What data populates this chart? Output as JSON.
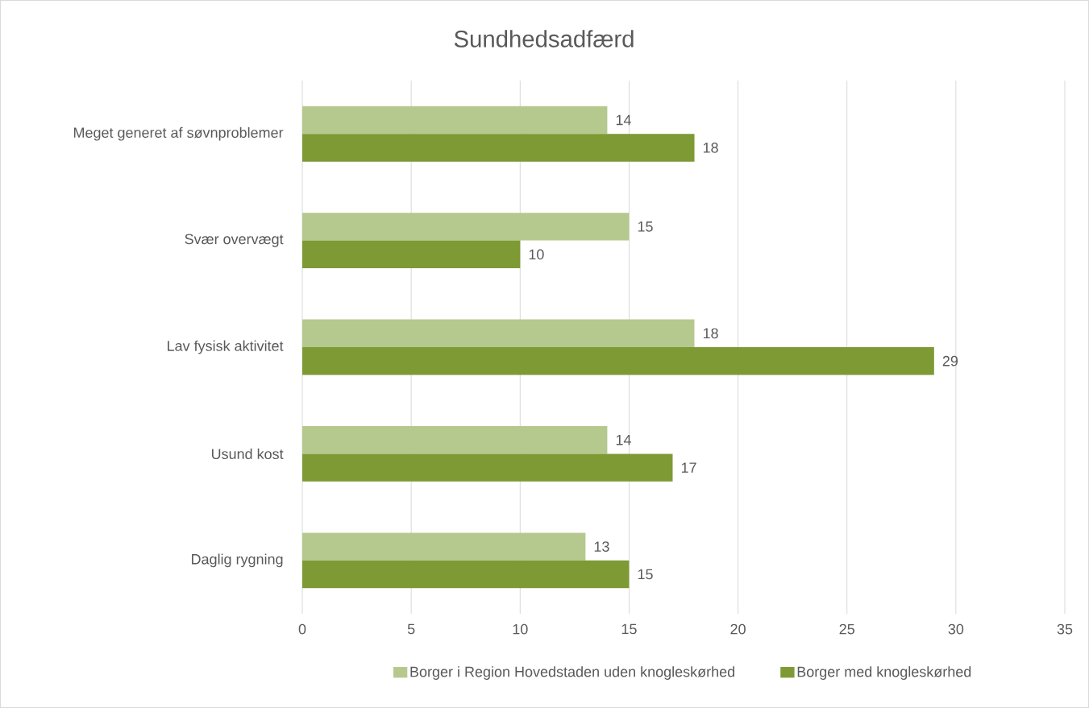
{
  "chart_data": {
    "type": "bar",
    "orientation": "horizontal",
    "title": "Sundhedsadfærd",
    "categories": [
      "Meget generet af søvnproblemer",
      "Svær overvægt",
      "Lav fysisk aktivitet",
      "Usund kost",
      "Daglig rygning"
    ],
    "series": [
      {
        "name": "Borger i Region Hovedstaden uden knogleskørhed",
        "color": "#b5c98e",
        "values": [
          14,
          15,
          18,
          14,
          13
        ]
      },
      {
        "name": "Borger med knogleskørhed",
        "color": "#7d9a35",
        "values": [
          18,
          10,
          29,
          17,
          15
        ]
      }
    ],
    "xlim": [
      0,
      35
    ],
    "xticks": [
      0,
      5,
      10,
      15,
      20,
      25,
      30,
      35
    ],
    "grid": "x",
    "legend": "bottom",
    "data_labels": true
  }
}
